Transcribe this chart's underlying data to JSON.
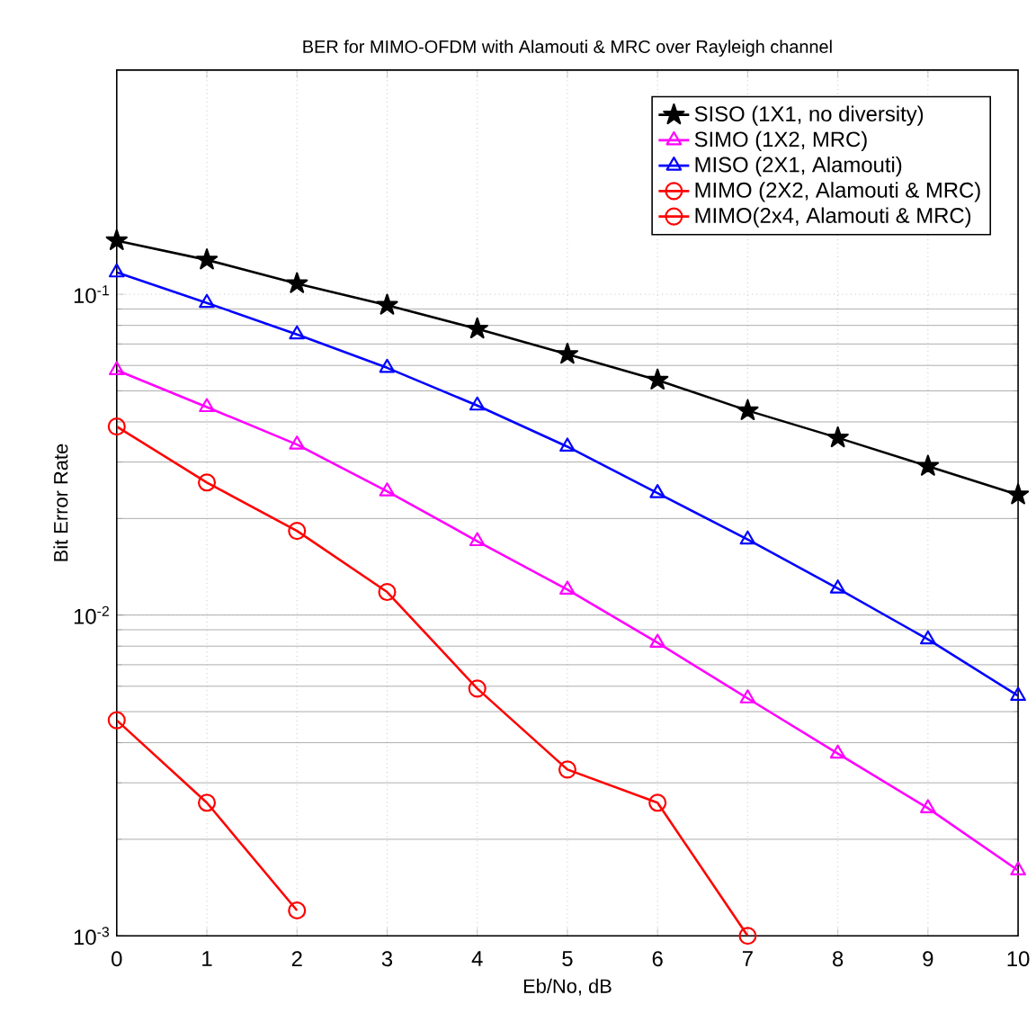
{
  "chart_data": {
    "type": "line",
    "title": "BER for MIMO-OFDM with Alamouti & MRC over Rayleigh channel",
    "xlabel": "Eb/No, dB",
    "ylabel": "Bit Error Rate",
    "log": "y",
    "grid": true,
    "legend": "top right",
    "line_style": "solid",
    "xlim": [
      0,
      10
    ],
    "xticks": [
      0,
      1,
      2,
      3,
      4,
      5,
      6,
      7,
      8,
      9,
      10
    ],
    "ylim": [
      0.001,
      0.5
    ],
    "yticks": [
      {
        "value": 0.001,
        "label": "10$^{-3}$"
      },
      {
        "value": 0.01,
        "label": "10$^{-2}$"
      },
      {
        "value": 0.1,
        "label": "10$^{-1}$"
      }
    ],
    "series": [
      {
        "name": "SISO (1X1, no diversity)",
        "color": "#000000",
        "marker": "star",
        "x": [
          0,
          1,
          2,
          3,
          4,
          5,
          6,
          7,
          8,
          9,
          10
        ],
        "values": [
          0.147,
          0.128,
          0.108,
          0.0925,
          0.078,
          0.065,
          0.054,
          0.0434,
          0.0357,
          0.0291,
          0.0237
        ]
      },
      {
        "name": "SIMO (1X2, MRC)",
        "color": "#ff00ff",
        "marker": "triangle",
        "x": [
          0,
          1,
          2,
          3,
          4,
          5,
          6,
          7,
          8,
          9,
          10
        ],
        "values": [
          0.058,
          0.0445,
          0.034,
          0.0243,
          0.017,
          0.012,
          0.0082,
          0.0055,
          0.0037,
          0.0025,
          0.0016
        ]
      },
      {
        "name": "MISO (2X1, Alamouti)",
        "color": "#0000ff",
        "marker": "triangle",
        "x": [
          0,
          1,
          2,
          3,
          4,
          5,
          6,
          7,
          8,
          9,
          10
        ],
        "values": [
          0.117,
          0.094,
          0.075,
          0.059,
          0.045,
          0.0335,
          0.024,
          0.0172,
          0.0121,
          0.0084,
          0.0056
        ]
      },
      {
        "name": "MIMO (2X2, Alamouti & MRC)",
        "color": "#ff0000",
        "marker": "circle",
        "x": [
          0,
          1,
          2,
          3,
          4,
          5,
          6,
          7
        ],
        "values": [
          0.0387,
          0.0259,
          0.0183,
          0.0118,
          0.0059,
          0.0033,
          0.0026,
          0.001
        ]
      },
      {
        "name": "MIMO(2x4, Alamouti & MRC)",
        "color": "#ff0000",
        "marker": "circle",
        "x": [
          0,
          1,
          2
        ],
        "values": [
          0.0047,
          0.0026,
          0.0012
        ]
      }
    ]
  }
}
